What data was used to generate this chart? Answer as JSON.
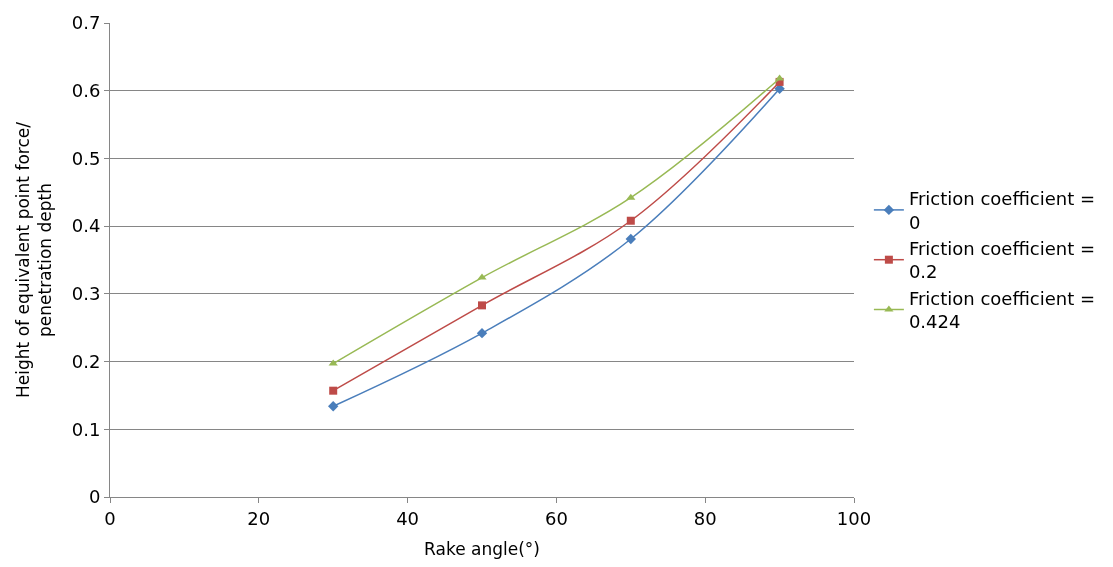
{
  "chart_data": {
    "type": "line",
    "xlabel": "Rake angle(°)",
    "ylabel": "Height of equivalent point force/ penetration depth",
    "x": [
      30,
      50,
      70,
      90
    ],
    "series": [
      {
        "name": "Friction coefficient = 0",
        "color": "#4a7ebb",
        "marker": "diamond",
        "values": [
          0.134,
          0.242,
          0.381,
          0.603
        ]
      },
      {
        "name": "Friction coefficient = 0.2",
        "color": "#be4b48",
        "marker": "square",
        "values": [
          0.157,
          0.283,
          0.408,
          0.613
        ]
      },
      {
        "name": "Friction coefficient = 0.424",
        "color": "#98b954",
        "marker": "triangle",
        "values": [
          0.197,
          0.324,
          0.442,
          0.618
        ]
      }
    ],
    "xlim": [
      0,
      100
    ],
    "xticks": [
      0,
      20,
      40,
      60,
      80,
      100
    ],
    "ylim": [
      0,
      0.7
    ],
    "yticks": [
      0,
      0.1,
      0.2,
      0.3,
      0.4,
      0.5,
      0.6,
      0.7
    ],
    "grid": "y",
    "legend": "right"
  }
}
